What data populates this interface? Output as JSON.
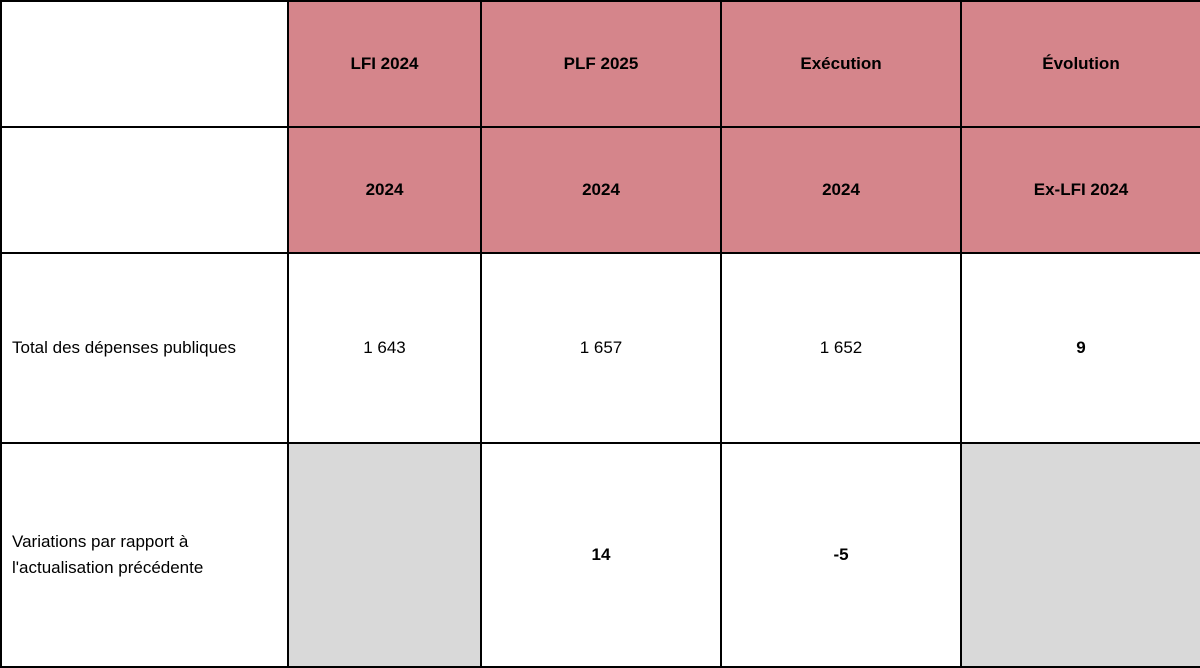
{
  "table": {
    "columns": [
      "LFI 2024",
      "PLF 2025",
      "Exécution",
      "Évolution"
    ],
    "subheaders": [
      "2024",
      "2024",
      "2024",
      "Ex-LFI 2024"
    ],
    "rows": [
      {
        "label": "Total des dépenses publiques",
        "cells": [
          "1 643",
          "1 657",
          "1 652",
          "9"
        ]
      },
      {
        "label": "Variations par rapport à l'actualisation précédente",
        "cells": [
          null,
          "14",
          "-5",
          null
        ]
      }
    ]
  }
}
